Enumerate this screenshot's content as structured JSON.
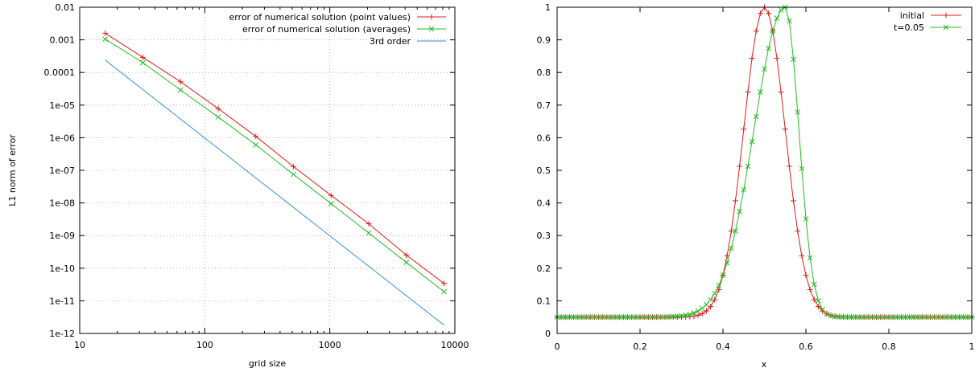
{
  "colors": {
    "red": "#e41a1c",
    "green": "#22bb22",
    "blue": "#3a8fd9"
  },
  "chart_data": [
    {
      "type": "line",
      "xlabel": "grid size",
      "ylabel": "L1 norm of error",
      "xscale": "log",
      "yscale": "log",
      "xlim": [
        10,
        10000
      ],
      "ylim": [
        1e-12,
        0.01
      ],
      "grid": true,
      "legend": "top-right",
      "xticks": [
        "10",
        "100",
        "1000",
        "10000"
      ],
      "yticks": [
        "1e-12",
        "1e-11",
        "1e-10",
        "1e-09",
        "1e-08",
        "1e-07",
        "1e-06",
        "1e-05",
        "0.0001",
        "0.001",
        "0.01"
      ],
      "series": [
        {
          "name": "error of numerical solution (point values)",
          "color": "red",
          "marker": "plus",
          "x": [
            16,
            32,
            64,
            128,
            256,
            512,
            1024,
            2048,
            4096,
            8192
          ],
          "y": [
            0.0016,
            0.00029,
            5.2e-05,
            7.8e-06,
            1.1e-06,
            1.3e-07,
            1.7e-08,
            2.3e-09,
            2.5e-10,
            3.4e-11
          ]
        },
        {
          "name": "error of numerical solution (averages)",
          "color": "green",
          "marker": "x",
          "x": [
            16,
            32,
            64,
            128,
            256,
            512,
            1024,
            2048,
            4096,
            8192
          ],
          "y": [
            0.00105,
            0.0002,
            2.9e-05,
            4.3e-06,
            6e-07,
            7.5e-08,
            9.5e-09,
            1.2e-09,
            1.5e-10,
            1.9e-11
          ]
        },
        {
          "name": "3rd order",
          "color": "blue",
          "marker": "none",
          "x": [
            16,
            8192
          ],
          "y": [
            0.00024,
            1.79e-12
          ]
        }
      ]
    },
    {
      "type": "line",
      "xlabel": "x",
      "ylabel": "",
      "xlim": [
        0,
        1
      ],
      "ylim": [
        0,
        1
      ],
      "grid": false,
      "legend": "top-right",
      "xticks": [
        "0",
        "0.2",
        "0.4",
        "0.6",
        "0.8",
        "1"
      ],
      "yticks": [
        "0",
        "0.1",
        "0.2",
        "0.3",
        "0.4",
        "0.5",
        "0.6",
        "0.7",
        "0.8",
        "0.9",
        "1"
      ],
      "series": [
        {
          "name": "initial",
          "color": "red",
          "marker": "plus",
          "function": "gaussian",
          "baseline": 0.05,
          "peak": 1.0,
          "center": 0.5,
          "sigma": 0.05,
          "x_start": 0.0,
          "x_step": 0.01,
          "n": 101
        },
        {
          "name": "t=0.05",
          "color": "green",
          "marker": "x",
          "function": "skewed-gaussian",
          "baseline": 0.05,
          "peak": 1.0,
          "center": 0.55,
          "sigma_left": 0.075,
          "sigma_right": 0.033,
          "x_start": 0.0,
          "x_step": 0.01,
          "n": 101
        }
      ]
    }
  ]
}
